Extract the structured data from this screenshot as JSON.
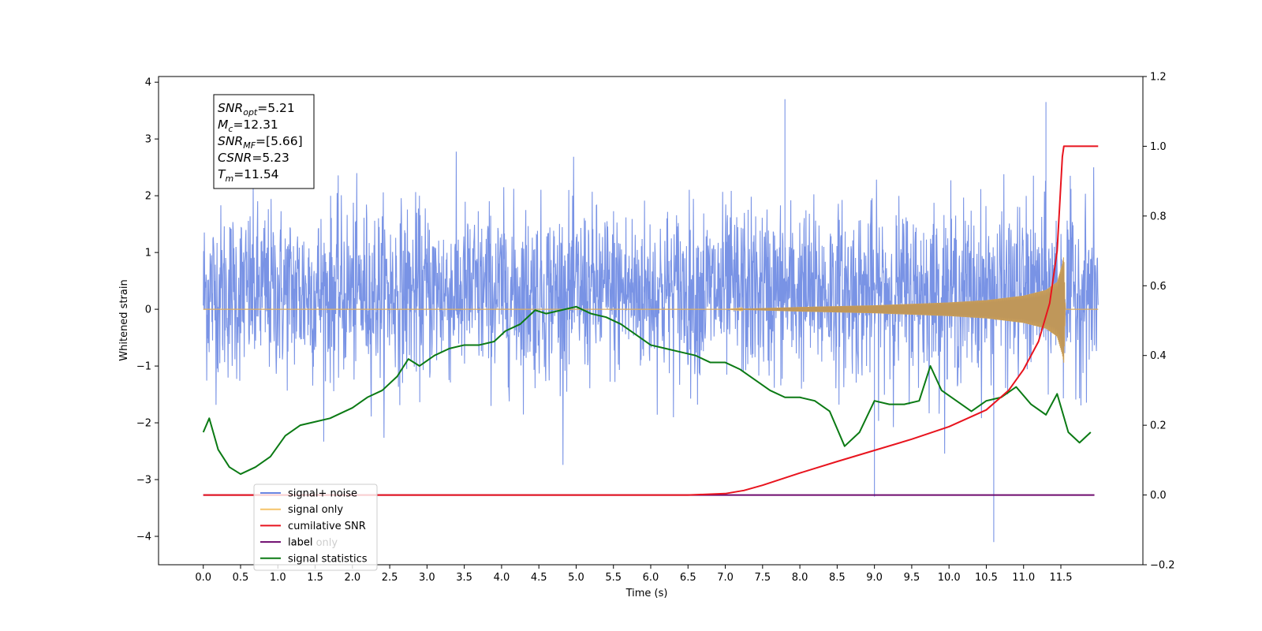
{
  "chart_data": {
    "type": "line",
    "xlabel": "Time (s)",
    "ylabel": "Whitened strain",
    "xlim": [
      -0.6,
      12.6
    ],
    "ylim": [
      -4.5,
      4.1
    ],
    "y2lim": [
      -0.2,
      1.2
    ],
    "grid": false,
    "legend_position": "lower-left",
    "x_ticks": [
      "0.0",
      "0.5",
      "1.0",
      "1.5",
      "2.0",
      "2.5",
      "3.0",
      "3.5",
      "4.0",
      "4.5",
      "5.0",
      "5.5",
      "6.0",
      "6.5",
      "7.0",
      "7.5",
      "8.0",
      "8.5",
      "9.0",
      "9.5",
      "10.0",
      "10.5",
      "11.0",
      "11.5"
    ],
    "y_ticks": [
      "4",
      "3",
      "2",
      "1",
      "0",
      "−1",
      "−2",
      "−3",
      "−4"
    ],
    "y2_ticks": [
      "1.2",
      "1.0",
      "0.8",
      "0.6",
      "0.4",
      "0.2",
      "0.0",
      "−0.2"
    ],
    "annotation": {
      "lines": [
        {
          "base": "SNR",
          "sub": "opt",
          "rest": "=5.21"
        },
        {
          "base": "M",
          "sub": "c",
          "rest": "=12.31"
        },
        {
          "base": "SNR",
          "sub": "MF",
          "rest": "=[5.66]"
        },
        {
          "base": "CSNR",
          "sub": "",
          "rest": "=5.23"
        },
        {
          "base": "T",
          "sub": "m",
          "rest": "=11.54"
        }
      ]
    },
    "legend": [
      {
        "label": "signal+ noise",
        "color": "#6a87e2"
      },
      {
        "label": "signal only",
        "color": "#f5c46a"
      },
      {
        "label": "cumilative SNR",
        "color": "#e8141e"
      },
      {
        "label": "label",
        "color": "#6e0a6e"
      },
      {
        "label": "signal statistics",
        "color": "#0b7a14"
      }
    ],
    "legend_hidden_text": "label only",
    "series": [
      {
        "name": "signal+ noise",
        "axis": "left",
        "color": "#6a87e2",
        "x_range": [
          0.0,
          12.0
        ],
        "approx_std": 1.05,
        "note_peaks": [
          [
            7.8,
            3.7
          ],
          [
            10.6,
            -4.1
          ],
          [
            11.3,
            3.65
          ],
          [
            9.0,
            -3.3
          ]
        ]
      },
      {
        "name": "signal only",
        "axis": "left",
        "color": "#f5c46a",
        "x": [
          0.0,
          7.0,
          8.0,
          9.0,
          10.0,
          10.5,
          11.0,
          11.3,
          11.45,
          11.52,
          11.54,
          11.56,
          12.0
        ],
        "envelope": [
          0.0,
          0.0,
          0.04,
          0.07,
          0.12,
          0.16,
          0.24,
          0.34,
          0.48,
          0.8,
          0.95,
          0.0,
          0.0
        ]
      },
      {
        "name": "cumilative SNR",
        "axis": "right",
        "color": "#e8141e",
        "x": [
          0.0,
          6.5,
          7.0,
          7.25,
          7.5,
          8.0,
          8.5,
          9.0,
          9.5,
          10.0,
          10.5,
          10.8,
          11.0,
          11.2,
          11.35,
          11.45,
          11.52,
          11.54,
          12.0
        ],
        "y": [
          0.0,
          0.0,
          0.004,
          0.013,
          0.028,
          0.063,
          0.096,
          0.128,
          0.16,
          0.196,
          0.244,
          0.3,
          0.36,
          0.44,
          0.55,
          0.7,
          0.97,
          1.0,
          1.0
        ]
      },
      {
        "name": "label",
        "axis": "right",
        "color": "#6e0a6e",
        "x": [
          0.0,
          11.95
        ],
        "y": [
          0.0,
          0.0
        ]
      },
      {
        "name": "signal statistics",
        "axis": "right",
        "color": "#0b7a14",
        "x": [
          0.0,
          0.08,
          0.2,
          0.35,
          0.5,
          0.7,
          0.9,
          1.1,
          1.3,
          1.5,
          1.7,
          1.9,
          2.0,
          2.2,
          2.4,
          2.6,
          2.75,
          2.9,
          3.1,
          3.3,
          3.5,
          3.7,
          3.9,
          4.05,
          4.25,
          4.45,
          4.6,
          4.8,
          5.0,
          5.2,
          5.4,
          5.6,
          5.8,
          6.0,
          6.2,
          6.4,
          6.6,
          6.8,
          7.0,
          7.2,
          7.4,
          7.6,
          7.8,
          8.0,
          8.2,
          8.4,
          8.6,
          8.8,
          9.0,
          9.2,
          9.4,
          9.6,
          9.75,
          9.9,
          10.1,
          10.3,
          10.5,
          10.7,
          10.9,
          11.1,
          11.3,
          11.45,
          11.6,
          11.75,
          11.9
        ],
        "y": [
          0.18,
          0.22,
          0.13,
          0.08,
          0.06,
          0.08,
          0.11,
          0.17,
          0.2,
          0.21,
          0.22,
          0.24,
          0.25,
          0.28,
          0.3,
          0.34,
          0.39,
          0.37,
          0.4,
          0.42,
          0.43,
          0.43,
          0.44,
          0.47,
          0.49,
          0.53,
          0.52,
          0.53,
          0.54,
          0.52,
          0.51,
          0.49,
          0.46,
          0.43,
          0.42,
          0.41,
          0.4,
          0.38,
          0.38,
          0.36,
          0.33,
          0.3,
          0.28,
          0.28,
          0.27,
          0.24,
          0.14,
          0.18,
          0.27,
          0.26,
          0.26,
          0.27,
          0.37,
          0.3,
          0.27,
          0.24,
          0.27,
          0.28,
          0.31,
          0.26,
          0.23,
          0.29,
          0.18,
          0.15,
          0.18
        ]
      }
    ]
  }
}
